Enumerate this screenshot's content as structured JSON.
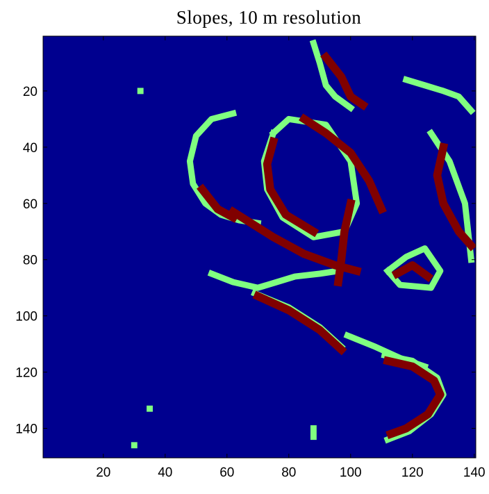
{
  "chart_data": {
    "type": "raster",
    "title": "Slopes, 10 m resolution",
    "background": "#00008f",
    "xlim": [
      0.5,
      140.5
    ],
    "ylim": [
      0.5,
      150.5
    ],
    "y_reversed": true,
    "xticks": [
      20,
      40,
      60,
      80,
      100,
      120,
      140
    ],
    "yticks": [
      20,
      40,
      60,
      80,
      100,
      120,
      140
    ],
    "features": [
      {
        "color": "#80ff80",
        "x": [
          62,
          55,
          50,
          48,
          49,
          53,
          58,
          64,
          70
        ],
        "y": [
          28,
          30,
          36,
          45,
          53,
          60,
          64,
          66,
          67
        ]
      },
      {
        "color": "#80ff80",
        "x": [
          75,
          72,
          73,
          78,
          88,
          98,
          102,
          100,
          92,
          80,
          75
        ],
        "y": [
          35,
          45,
          55,
          65,
          72,
          70,
          60,
          45,
          32,
          30,
          35
        ]
      },
      {
        "color": "#80ff80",
        "x": [
          88,
          90,
          92,
          95,
          100
        ],
        "y": [
          3,
          10,
          18,
          22,
          26
        ]
      },
      {
        "color": "#80ff80",
        "x": [
          118,
          124,
          130,
          135,
          139
        ],
        "y": [
          16,
          18,
          20,
          22,
          27
        ]
      },
      {
        "color": "#80ff80",
        "x": [
          55,
          62,
          70,
          76,
          82,
          90,
          96
        ],
        "y": [
          85,
          88,
          90,
          88,
          86,
          85,
          84
        ]
      },
      {
        "color": "#80ff80",
        "x": [
          112,
          118,
          124,
          129,
          126,
          116,
          112
        ],
        "y": [
          84,
          79,
          76,
          84,
          90,
          89,
          84
        ]
      },
      {
        "color": "#80ff80",
        "x": [
          99,
          108,
          116,
          124
        ],
        "y": [
          107,
          111,
          115,
          118
        ]
      },
      {
        "color": "#80ff80",
        "x": [
          69,
          80,
          90,
          97
        ],
        "y": [
          92,
          97,
          104,
          111
        ]
      },
      {
        "color": "#80ff80",
        "x": [
          111,
          120,
          128,
          130,
          126,
          119,
          112
        ],
        "y": [
          114,
          116,
          122,
          128,
          135,
          141,
          144
        ]
      },
      {
        "color": "#80ff80",
        "x": [
          126,
          132,
          137,
          139
        ],
        "y": [
          35,
          45,
          60,
          80
        ]
      },
      {
        "color": "#80ff80",
        "x": [
          32,
          32
        ],
        "y": [
          20,
          20
        ]
      },
      {
        "color": "#80ff80",
        "x": [
          30,
          30
        ],
        "y": [
          146,
          146
        ]
      },
      {
        "color": "#80ff80",
        "x": [
          35,
          35
        ],
        "y": [
          133,
          133
        ]
      },
      {
        "color": "#80ff80",
        "x": [
          88,
          88
        ],
        "y": [
          140,
          143
        ]
      },
      {
        "color": "#800000",
        "x": [
          52,
          57,
          62
        ],
        "y": [
          55,
          62,
          65
        ]
      },
      {
        "color": "#800000",
        "x": [
          85,
          92,
          100,
          106,
          110
        ],
        "y": [
          30,
          35,
          42,
          52,
          62
        ]
      },
      {
        "color": "#800000",
        "x": [
          62,
          75,
          85,
          95,
          102
        ],
        "y": [
          63,
          72,
          78,
          82,
          84
        ]
      },
      {
        "color": "#800000",
        "x": [
          100,
          98,
          97,
          96
        ],
        "y": [
          60,
          70,
          80,
          88
        ]
      },
      {
        "color": "#800000",
        "x": [
          130,
          128,
          130,
          135,
          139
        ],
        "y": [
          40,
          50,
          60,
          70,
          75
        ]
      },
      {
        "color": "#800000",
        "x": [
          92,
          97,
          100,
          104
        ],
        "y": [
          8,
          15,
          22,
          25
        ]
      },
      {
        "color": "#800000",
        "x": [
          75,
          73,
          74,
          79,
          88
        ],
        "y": [
          38,
          46,
          55,
          64,
          70
        ]
      },
      {
        "color": "#800000",
        "x": [
          70,
          80,
          90,
          97
        ],
        "y": [
          93,
          98,
          105,
          112
        ]
      },
      {
        "color": "#800000",
        "x": [
          112,
          120,
          127,
          129,
          125,
          118,
          113
        ],
        "y": [
          116,
          118,
          123,
          128,
          135,
          140,
          142
        ]
      },
      {
        "color": "#800000",
        "x": [
          115,
          120,
          125
        ],
        "y": [
          85,
          82,
          86
        ]
      }
    ]
  }
}
